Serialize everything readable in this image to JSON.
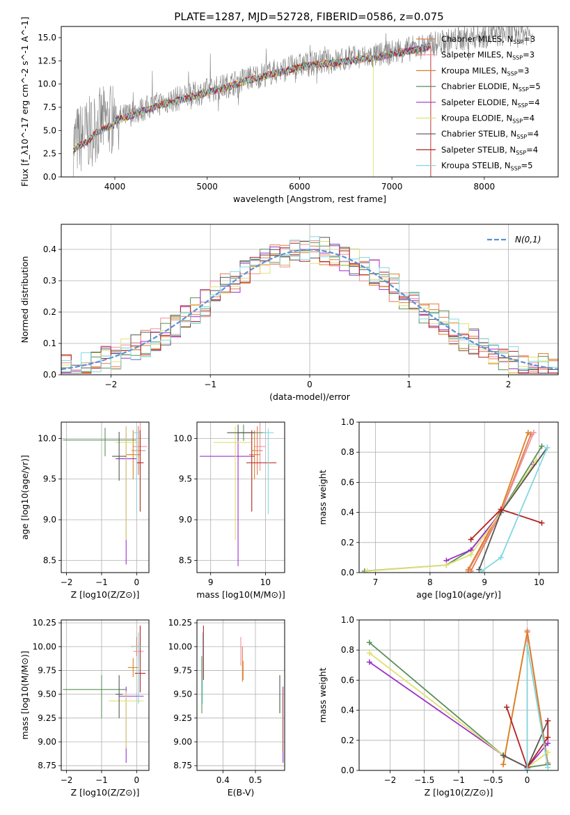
{
  "figure": {
    "title": "PLATE=1287, MJD=52728, FIBERID=0586, z=0.075"
  },
  "models": [
    {
      "label": "Chabrier MILES, N",
      "n": "=3",
      "color": "#e07b54"
    },
    {
      "label": "Salpeter MILES, N",
      "n": "=3",
      "color": "#f28e9a"
    },
    {
      "label": "Kroupa MILES, N",
      "n": "=3",
      "color": "#d98020"
    },
    {
      "label": "Chabrier ELODIE, N",
      "n": "=5",
      "color": "#5a8f5a"
    },
    {
      "label": "Salpeter ELODIE, N",
      "n": "=4",
      "color": "#9b30c8"
    },
    {
      "label": "Kroupa ELODIE, N",
      "n": "=4",
      "color": "#e0e070"
    },
    {
      "label": "Chabrier STELIB, N",
      "n": "=4",
      "color": "#555555"
    },
    {
      "label": "Salpeter STELIB, N",
      "n": "=4",
      "color": "#b22020"
    },
    {
      "label": "Kroupa STELIB, N",
      "n": "=5",
      "color": "#80d8e0"
    }
  ],
  "chart_data": [
    {
      "type": "line",
      "id": "spectrum",
      "title": "PLATE=1287, MJD=52728, FIBERID=0586, z=0.075",
      "xlabel": "wavelength [Angstrom, rest frame]",
      "ylabel": "Flux [f_λ10^-17 erg cm^-2 s^-1 A^-1]",
      "xlim": [
        3420,
        8800
      ],
      "ylim": [
        0,
        16.2
      ],
      "xticks": [
        4000,
        5000,
        6000,
        7000,
        8000
      ],
      "yticks": [
        0.0,
        2.5,
        5.0,
        7.5,
        10.0,
        12.5,
        15.0
      ],
      "x": [
        3550,
        3600,
        3700,
        3800,
        3900,
        4000,
        4100,
        4200,
        4300,
        4400,
        4500,
        4600,
        4700,
        4800,
        4900,
        5000,
        5200,
        5400,
        5600,
        5800,
        6000,
        6200,
        6400,
        6600,
        6800,
        7000,
        7200,
        7400,
        7600,
        7800,
        8000,
        8200,
        8400,
        8600,
        8800
      ],
      "series": [
        {
          "name": "data",
          "values": [
            3.5,
            4.0,
            4.5,
            5.5,
            6.0,
            6.3,
            6.5,
            6.9,
            7.3,
            7.6,
            8.0,
            8.2,
            8.5,
            8.7,
            9.0,
            9.3,
            9.8,
            10.5,
            11.0,
            11.5,
            12.0,
            12.3,
            12.5,
            12.8,
            13.0,
            13.4,
            13.8,
            14.2,
            14.6,
            15.0,
            15.2,
            15.4,
            15.5,
            15.6,
            15.7
          ]
        },
        {
          "name": "model",
          "values": [
            3.4,
            3.9,
            4.4,
            5.4,
            5.9,
            6.2,
            6.4,
            6.8,
            7.2,
            7.5,
            7.9,
            8.1,
            8.4,
            8.6,
            8.9,
            9.2,
            9.7,
            10.4,
            10.9,
            11.4,
            11.9,
            12.2,
            12.4,
            12.7,
            12.9,
            13.3,
            13.7,
            14.1,
            14.5,
            14.9,
            15.1,
            15.3,
            15.4,
            15.5,
            15.6
          ]
        }
      ]
    },
    {
      "type": "line",
      "id": "residual",
      "xlabel": "(data-model)/error",
      "ylabel": "Normed distribution",
      "xlim": [
        -2.5,
        2.5
      ],
      "ylim": [
        0,
        0.48
      ],
      "xticks": [
        -2,
        -1,
        0,
        1,
        2
      ],
      "yticks": [
        0.0,
        0.1,
        0.2,
        0.3,
        0.4
      ],
      "legend": "N(0,1)",
      "grid": true
    },
    {
      "type": "scatter",
      "id": "age_vs_Z",
      "xlabel": "Z [log10(Z/Z⊙)]",
      "ylabel": "age [log10(age/yr)]",
      "xlim": [
        -2.15,
        0.35
      ],
      "ylim": [
        8.35,
        10.2
      ],
      "xticks": [
        -2,
        -1,
        0
      ],
      "yticks": [
        8.5,
        9.0,
        9.5,
        10.0
      ],
      "grid": true,
      "points": [
        {
          "x": 0.05,
          "y": 9.85,
          "xerr": [
            0.2,
            0.2
          ],
          "yerr": [
            0.3,
            0.3
          ],
          "color": "#e07b54"
        },
        {
          "x": 0.1,
          "y": 9.9,
          "xerr": [
            0.2,
            0.2
          ],
          "yerr": [
            0.3,
            0.3
          ],
          "color": "#f28e9a"
        },
        {
          "x": -0.1,
          "y": 9.8,
          "xerr": [
            0.2,
            0.2
          ],
          "yerr": [
            0.3,
            0.3
          ],
          "color": "#d98020"
        },
        {
          "x": -0.9,
          "y": 9.98,
          "xerr": [
            1.2,
            0.9
          ],
          "yerr": [
            0.2,
            0.15
          ],
          "color": "#5a8f5a"
        },
        {
          "x": -0.3,
          "y": 9.75,
          "xerr": [
            0.3,
            0.3
          ],
          "yerr": [
            1.3,
            0.4
          ],
          "color": "#9b30c8"
        },
        {
          "x": -0.3,
          "y": 9.95,
          "xerr": [
            0.3,
            0.4
          ],
          "yerr": [
            1.2,
            0.2
          ],
          "color": "#e0e070"
        },
        {
          "x": -0.5,
          "y": 9.78,
          "xerr": [
            0.2,
            0.2
          ],
          "yerr": [
            0.3,
            0.3
          ],
          "color": "#555555"
        },
        {
          "x": 0.1,
          "y": 9.7,
          "xerr": [
            0.1,
            0.1
          ],
          "yerr": [
            0.6,
            0.4
          ],
          "color": "#b22020"
        },
        {
          "x": 0.0,
          "y": 10.07,
          "xerr": [
            0.1,
            0.1
          ],
          "yerr": [
            1.0,
            0.05
          ],
          "color": "#80d8e0"
        }
      ]
    },
    {
      "type": "scatter",
      "id": "age_vs_mass",
      "xlabel": "mass [log10(M/M⊙)]",
      "ylabel": "",
      "xlim": [
        8.75,
        10.35
      ],
      "ylim": [
        8.35,
        10.2
      ],
      "xticks": [
        9,
        10
      ],
      "yticks": [
        8.5,
        9.0,
        9.5,
        10.0
      ],
      "grid": true,
      "points": [
        {
          "x": 9.85,
          "y": 9.85,
          "xerr": [
            0.1,
            0.1
          ],
          "yerr": [
            0.3,
            0.3
          ],
          "color": "#e07b54"
        },
        {
          "x": 9.9,
          "y": 9.9,
          "xerr": [
            0.1,
            0.1
          ],
          "yerr": [
            0.3,
            0.3
          ],
          "color": "#f28e9a"
        },
        {
          "x": 9.8,
          "y": 9.8,
          "xerr": [
            0.1,
            0.1
          ],
          "yerr": [
            0.3,
            0.3
          ],
          "color": "#d98020"
        },
        {
          "x": 9.6,
          "y": 10.07,
          "xerr": [
            0.1,
            0.4
          ],
          "yerr": [
            0.1,
            0.1
          ],
          "color": "#5a8f5a"
        },
        {
          "x": 9.5,
          "y": 9.78,
          "xerr": [
            0.7,
            0.3
          ],
          "yerr": [
            1.35,
            0.35
          ],
          "color": "#9b30c8"
        },
        {
          "x": 9.45,
          "y": 9.95,
          "xerr": [
            0.4,
            0.3
          ],
          "yerr": [
            1.2,
            0.2
          ],
          "color": "#e0e070"
        },
        {
          "x": 9.5,
          "y": 10.07,
          "xerr": [
            0.2,
            0.3
          ],
          "yerr": [
            0.1,
            0.1
          ],
          "color": "#555555"
        },
        {
          "x": 9.75,
          "y": 9.7,
          "xerr": [
            0.1,
            0.45
          ],
          "yerr": [
            0.6,
            0.4
          ],
          "color": "#b22020"
        },
        {
          "x": 10.05,
          "y": 10.07,
          "xerr": [
            0.1,
            0.1
          ],
          "yerr": [
            1.0,
            0.05
          ],
          "color": "#80d8e0"
        }
      ]
    },
    {
      "type": "line",
      "id": "weight_vs_age",
      "xlabel": "age [log10(age/yr)]",
      "ylabel": "mass weight",
      "xlim": [
        6.7,
        10.35
      ],
      "ylim": [
        0,
        1
      ],
      "xticks": [
        7,
        8,
        9,
        10
      ],
      "yticks": [
        0.0,
        0.2,
        0.4,
        0.6,
        0.8,
        1.0
      ],
      "grid": true,
      "series": [
        {
          "name": "Chabrier MILES",
          "color": "#e07b54",
          "x": [
            8.75,
            9.3,
            9.85
          ],
          "y": [
            0.01,
            0.4,
            0.92
          ]
        },
        {
          "name": "Salpeter MILES",
          "color": "#f28e9a",
          "x": [
            8.7,
            9.3,
            9.9
          ],
          "y": [
            0.01,
            0.4,
            0.93
          ]
        },
        {
          "name": "Kroupa MILES",
          "color": "#d98020",
          "x": [
            8.7,
            9.3,
            9.8
          ],
          "y": [
            0.02,
            0.42,
            0.93
          ]
        },
        {
          "name": "Chabrier ELODIE",
          "color": "#5a8f5a",
          "x": [
            6.8,
            8.3,
            8.75,
            9.3,
            10.05
          ],
          "y": [
            0.01,
            0.05,
            0.15,
            0.4,
            0.84
          ]
        },
        {
          "name": "Salpeter ELODIE",
          "color": "#9b30c8",
          "x": [
            8.3,
            8.75,
            9.3,
            9.9
          ],
          "y": [
            0.08,
            0.15,
            0.4,
            0.72
          ]
        },
        {
          "name": "Kroupa ELODIE",
          "color": "#e0e070",
          "x": [
            6.85,
            8.3,
            8.75,
            9.3,
            9.95
          ],
          "y": [
            0.01,
            0.05,
            0.12,
            0.4,
            0.75
          ]
        },
        {
          "name": "Chabrier STELIB",
          "color": "#555555",
          "x": [
            8.9,
            9.3,
            10.15
          ],
          "y": [
            0.02,
            0.4,
            0.83
          ]
        },
        {
          "name": "Salpeter STELIB",
          "color": "#b22020",
          "x": [
            8.75,
            9.3,
            10.05
          ],
          "y": [
            0.22,
            0.42,
            0.33
          ]
        },
        {
          "name": "Kroupa STELIB",
          "color": "#80d8e0",
          "x": [
            8.95,
            9.3,
            10.15
          ],
          "y": [
            0.01,
            0.1,
            0.83
          ]
        }
      ]
    },
    {
      "type": "scatter",
      "id": "mass_vs_Z",
      "xlabel": "Z [log10(Z/Z⊙)]",
      "ylabel": "mass [log10(M/M⊙)]",
      "xlim": [
        -2.15,
        0.35
      ],
      "ylim": [
        8.7,
        10.28
      ],
      "xticks": [
        -2,
        -1,
        0
      ],
      "yticks": [
        8.75,
        9.0,
        9.25,
        9.5,
        9.75,
        10.0,
        10.25
      ],
      "grid": true,
      "points": [
        {
          "x": 0.0,
          "y": 10.0,
          "xerr": [
            0.15,
            0.15
          ],
          "yerr": [
            0.1,
            0.1
          ],
          "color": "#e07b54"
        },
        {
          "x": 0.05,
          "y": 9.95,
          "xerr": [
            0.15,
            0.15
          ],
          "yerr": [
            0.1,
            0.1
          ],
          "color": "#f28e9a"
        },
        {
          "x": -0.1,
          "y": 9.78,
          "xerr": [
            0.15,
            0.15
          ],
          "yerr": [
            0.1,
            0.1
          ],
          "color": "#d98020"
        },
        {
          "x": -1.0,
          "y": 9.55,
          "xerr": [
            1.1,
            0.7
          ],
          "yerr": [
            0.3,
            0.15
          ],
          "color": "#5a8f5a"
        },
        {
          "x": -0.3,
          "y": 9.48,
          "xerr": [
            0.2,
            0.5
          ],
          "yerr": [
            0.7,
            0.1
          ],
          "color": "#9b30c8"
        },
        {
          "x": -0.3,
          "y": 9.43,
          "xerr": [
            0.5,
            0.5
          ],
          "yerr": [
            0.5,
            0.1
          ],
          "color": "#e0e070"
        },
        {
          "x": -0.5,
          "y": 9.5,
          "xerr": [
            0.1,
            0.1
          ],
          "yerr": [
            0.25,
            0.2
          ],
          "color": "#555555"
        },
        {
          "x": 0.1,
          "y": 9.72,
          "xerr": [
            0.15,
            0.15
          ],
          "yerr": [
            0.2,
            0.5
          ],
          "color": "#b22020"
        },
        {
          "x": 0.05,
          "y": 10.0,
          "xerr": [
            0.15,
            0.15
          ],
          "yerr": [
            0.6,
            0.15
          ],
          "color": "#80d8e0"
        }
      ]
    },
    {
      "type": "scatter",
      "id": "mass_vs_ebv",
      "xlabel": "E(B-V)",
      "ylabel": "",
      "xlim": [
        0.32,
        0.59
      ],
      "ylim": [
        8.7,
        10.28
      ],
      "xticks": [
        0.4,
        0.5
      ],
      "yticks": [
        8.75,
        9.0,
        9.25,
        9.5,
        9.75,
        10.0,
        10.25
      ],
      "grid": true,
      "points": [
        {
          "x": 0.46,
          "y": 9.8,
          "xerr": [
            0,
            0
          ],
          "yerr": [
            0.17,
            0.2
          ],
          "color": "#e07b54"
        },
        {
          "x": 0.455,
          "y": 9.95,
          "xerr": [
            0,
            0
          ],
          "yerr": [
            0.15,
            0.15
          ],
          "color": "#f28e9a"
        },
        {
          "x": 0.462,
          "y": 9.75,
          "xerr": [
            0,
            0
          ],
          "yerr": [
            0.1,
            0.1
          ],
          "color": "#d98020"
        },
        {
          "x": 0.335,
          "y": 9.6,
          "xerr": [
            0,
            0
          ],
          "yerr": [
            0.3,
            0.3
          ],
          "color": "#5a8f5a"
        },
        {
          "x": 0.585,
          "y": 9.48,
          "xerr": [
            0,
            0
          ],
          "yerr": [
            0.7,
            0.1
          ],
          "color": "#9b30c8"
        },
        {
          "x": 0.583,
          "y": 9.25,
          "xerr": [
            0,
            0
          ],
          "yerr": [
            0.35,
            0.3
          ],
          "color": "#e0e070"
        },
        {
          "x": 0.575,
          "y": 9.5,
          "xerr": [
            0,
            0
          ],
          "yerr": [
            0.2,
            0.2
          ],
          "color": "#555555"
        },
        {
          "x": 0.34,
          "y": 9.95,
          "xerr": [
            0,
            0
          ],
          "yerr": [
            0.3,
            0.27
          ],
          "color": "#b22020"
        },
        {
          "x": 0.337,
          "y": 9.8,
          "xerr": [
            0,
            0
          ],
          "yerr": [
            0.4,
            0.35
          ],
          "color": "#80d8e0"
        }
      ]
    },
    {
      "type": "line",
      "id": "weight_vs_Z",
      "xlabel": "Z [log10(Z/Z⊙)]",
      "ylabel": "mass weight",
      "xlim": [
        -2.45,
        0.45
      ],
      "ylim": [
        0,
        1
      ],
      "xticks": [
        -2.0,
        -1.5,
        -1.0,
        -0.5,
        0.0
      ],
      "yticks": [
        0.0,
        0.2,
        0.4,
        0.6,
        0.8,
        1.0
      ],
      "grid": true,
      "series": [
        {
          "name": "Chabrier MILES",
          "color": "#e07b54",
          "x": [
            -0.35,
            0.0,
            0.3
          ],
          "y": [
            0.04,
            0.92,
            0.04
          ]
        },
        {
          "name": "Salpeter MILES",
          "color": "#f28e9a",
          "x": [
            0.0,
            0.0,
            0.3
          ],
          "y": [
            0.01,
            0.93,
            0.05
          ]
        },
        {
          "name": "Kroupa MILES",
          "color": "#d98020",
          "x": [
            -0.35,
            0.0,
            0.3
          ],
          "y": [
            0.04,
            0.92,
            0.04
          ]
        },
        {
          "name": "Chabrier ELODIE",
          "color": "#5a8f5a",
          "x": [
            -2.3,
            -0.35,
            0.0,
            0.3
          ],
          "y": [
            0.85,
            0.1,
            0.02,
            0.04
          ]
        },
        {
          "name": "Salpeter ELODIE",
          "color": "#9b30c8",
          "x": [
            -2.3,
            -0.35,
            0.0,
            0.3
          ],
          "y": [
            0.72,
            0.1,
            0.02,
            0.18
          ]
        },
        {
          "name": "Kroupa ELODIE",
          "color": "#e0e070",
          "x": [
            -2.3,
            -0.35,
            0.0,
            0.3
          ],
          "y": [
            0.78,
            0.1,
            0.02,
            0.12
          ]
        },
        {
          "name": "Chabrier STELIB",
          "color": "#555555",
          "x": [
            -0.35,
            0.0,
            0.3
          ],
          "y": [
            0.1,
            0.02,
            0.33
          ]
        },
        {
          "name": "Salpeter STELIB",
          "color": "#b22020",
          "x": [
            -0.3,
            0.0,
            0.3,
            0.3
          ],
          "y": [
            0.42,
            0.02,
            0.22,
            0.33
          ]
        },
        {
          "name": "Kroupa STELIB",
          "color": "#80d8e0",
          "x": [
            0.0,
            0.0,
            0.3
          ],
          "y": [
            0.01,
            0.83,
            0.02
          ]
        }
      ]
    }
  ]
}
